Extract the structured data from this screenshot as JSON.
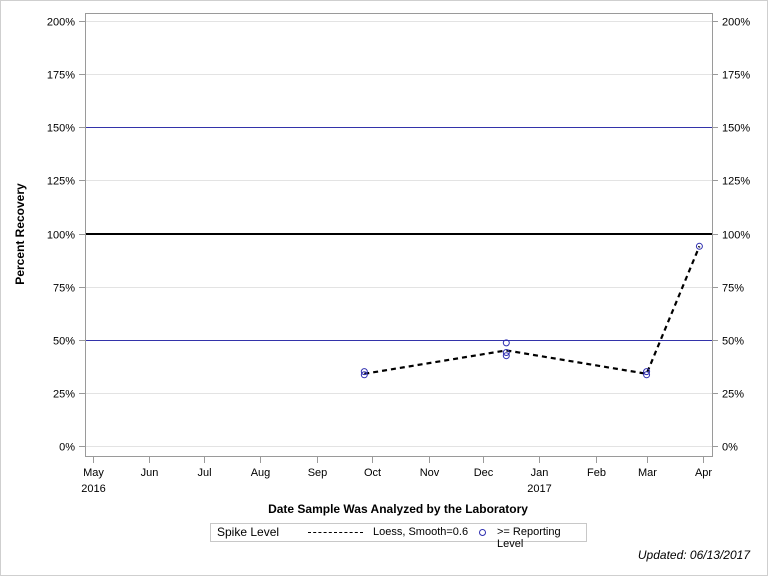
{
  "chart_data": {
    "type": "line",
    "title": "",
    "xlabel": "Date Sample Was Analyzed by the Laboratory",
    "ylabel": "Percent Recovery",
    "ylim": [
      0,
      200
    ],
    "y_ticks": [
      "0%",
      "25%",
      "50%",
      "75%",
      "100%",
      "125%",
      "150%",
      "175%",
      "200%"
    ],
    "x_ticks": [
      {
        "label": "May",
        "sub": "2016"
      },
      {
        "label": "Jun",
        "sub": ""
      },
      {
        "label": "Jul",
        "sub": ""
      },
      {
        "label": "Aug",
        "sub": ""
      },
      {
        "label": "Sep",
        "sub": ""
      },
      {
        "label": "Oct",
        "sub": ""
      },
      {
        "label": "Nov",
        "sub": ""
      },
      {
        "label": "Dec",
        "sub": ""
      },
      {
        "label": "Jan",
        "sub": "2017"
      },
      {
        "label": "Feb",
        "sub": ""
      },
      {
        "label": "Mar",
        "sub": ""
      },
      {
        "label": "Apr",
        "sub": ""
      }
    ],
    "reference_lines": [
      {
        "y": 100,
        "color": "#000000",
        "width": 2
      },
      {
        "y": 50,
        "color": "#3333aa",
        "width": 1
      },
      {
        "y": 150,
        "color": "#3333aa",
        "width": 1
      }
    ],
    "series": [
      {
        "name": ">= Reporting Level",
        "type": "scatter",
        "color": "#3030b0",
        "points": [
          {
            "x": "2016-09-27",
            "y": 35
          },
          {
            "x": "2016-09-27",
            "y": 33.5
          },
          {
            "x": "2016-12-14",
            "y": 48.5
          },
          {
            "x": "2016-12-14",
            "y": 44
          },
          {
            "x": "2016-12-14",
            "y": 42.5
          },
          {
            "x": "2017-03-01",
            "y": 35
          },
          {
            "x": "2017-03-01",
            "y": 33.5
          },
          {
            "x": "2017-03-30",
            "y": 94
          }
        ]
      },
      {
        "name": "Loess, Smooth=0.6",
        "type": "line",
        "style": "dashed",
        "color": "#000000",
        "points": [
          {
            "x": "2016-09-27",
            "y": 34
          },
          {
            "x": "2016-12-14",
            "y": 45
          },
          {
            "x": "2017-03-01",
            "y": 34
          },
          {
            "x": "2017-03-30",
            "y": 94
          }
        ]
      }
    ],
    "legend": {
      "title": "Spike Level",
      "entries": [
        "Loess, Smooth=0.6",
        ">= Reporting Level"
      ],
      "position": "bottom"
    },
    "grid": true
  },
  "legend": {
    "title": "Spike Level",
    "loess": "Loess, Smooth=0.6",
    "reporting": ">= Reporting Level"
  },
  "footer": {
    "updated": "Updated: 06/13/2017"
  }
}
